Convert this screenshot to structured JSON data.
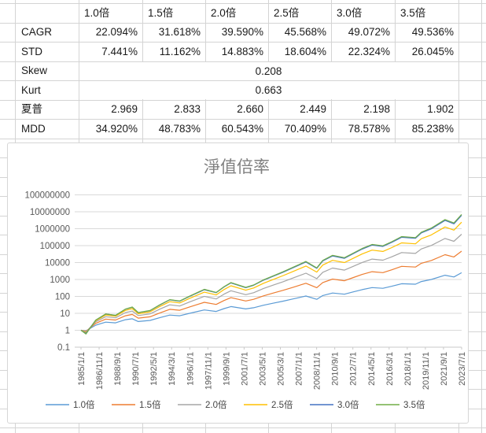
{
  "table": {
    "col_headers": [
      "1.0倍",
      "1.5倍",
      "2.0倍",
      "2.5倍",
      "3.0倍",
      "3.5倍"
    ],
    "rows": [
      {
        "label": "CAGR",
        "values": [
          "22.094%",
          "31.618%",
          "39.590%",
          "45.568%",
          "49.072%",
          "49.536%"
        ]
      },
      {
        "label": "STD",
        "values": [
          "7.441%",
          "11.162%",
          "14.883%",
          "18.604%",
          "22.324%",
          "26.045%"
        ]
      },
      {
        "label": "Skew",
        "merged": "0.208"
      },
      {
        "label": "Kurt",
        "merged": "0.663"
      },
      {
        "label": "夏普",
        "values": [
          "2.969",
          "2.833",
          "2.660",
          "2.449",
          "2.198",
          "1.902"
        ]
      },
      {
        "label": "MDD",
        "values": [
          "34.920%",
          "48.783%",
          "60.543%",
          "70.409%",
          "78.578%",
          "85.238%"
        ]
      }
    ]
  },
  "chart_data": {
    "type": "line",
    "title": "淨值倍率",
    "y_scale": "log",
    "ylim": [
      0.1,
      100000000
    ],
    "grid": true,
    "legend_position": "bottom",
    "y_ticks": [
      0.1,
      1,
      10,
      100,
      1000,
      10000,
      100000,
      1000000,
      10000000,
      100000000
    ],
    "x_tick_labels": [
      "1985/1/1",
      "1986/11/1",
      "1988/9/1",
      "1990/7/1",
      "1992/5/1",
      "1994/3/1",
      "1996/1/1",
      "1997/11/1",
      "1999/9/1",
      "2001/7/1",
      "2003/5/1",
      "2005/3/1",
      "2007/1/1",
      "2008/11/1",
      "2010/9/1",
      "2012/7/1",
      "2014/5/1",
      "2016/3/1",
      "2018/1/1",
      "2019/11/1",
      "2021/9/1",
      "2023/7/1"
    ],
    "x_range_years": [
      1985.0,
      2023.58
    ],
    "x": [
      1985.0,
      1985.5,
      1986.5,
      1987.5,
      1988.5,
      1989.5,
      1990.2,
      1990.8,
      1992.0,
      1993.0,
      1994.0,
      1995.0,
      1996.0,
      1997.5,
      1998.7,
      1999.5,
      2000.2,
      2001.7,
      2002.5,
      2003.5,
      2004.5,
      2005.5,
      2006.5,
      2007.8,
      2008.9,
      2009.5,
      2010.5,
      2011.7,
      2012.5,
      2013.5,
      2014.5,
      2015.6,
      2016.5,
      2017.5,
      2018.9,
      2019.5,
      2020.5,
      2021.9,
      2022.8,
      2023.58
    ],
    "series": [
      {
        "name": "1.0倍",
        "color": "#5B9BD5",
        "values": [
          1,
          0.93,
          2.0,
          3.0,
          2.75,
          4.2,
          4.8,
          3.3,
          3.8,
          5.6,
          7.9,
          7.2,
          10,
          15.8,
          12.9,
          19.1,
          25.1,
          18.2,
          21.4,
          30.2,
          39.8,
          52.5,
          70.8,
          105,
          67.6,
          112,
          158,
          135,
          178,
          251,
          331,
          302,
          398,
          562,
          525,
          759,
          1000,
          1780,
          1410,
          2510
        ]
      },
      {
        "name": "1.5倍",
        "color": "#ED7D31",
        "values": [
          1,
          0.88,
          2.58,
          4.57,
          4.03,
          7.2,
          8.6,
          5.2,
          6.26,
          10.7,
          17.3,
          15.2,
          23.7,
          44.6,
          33.5,
          57.4,
          83.9,
          53.8,
          67.1,
          108,
          158,
          231,
          348,
          597,
          327,
          656,
          1050,
          845,
          1240,
          1990,
          2900,
          2550,
          3730,
          6010,
          5460,
          9060,
          13200,
          29200,
          21300,
          47000
        ]
      },
      {
        "name": "2.0倍",
        "color": "#A5A5A5",
        "values": [
          1,
          0.8,
          3.17,
          6.33,
          5.42,
          11.0,
          13.7,
          7.4,
          9.29,
          17.9,
          31.8,
          27.2,
          46.7,
          101,
          71.3,
          137,
          217,
          127,
          166,
          295,
          468,
          743,
          1220,
          2350,
          1130,
          2640,
          4700,
          3590,
          5690,
          10100,
          16100,
          13800,
          21800,
          38900,
          34700,
          64100,
          102000,
          266000,
          181000,
          473000
        ]
      },
      {
        "name": "2.5倍",
        "color": "#FFC000",
        "values": [
          1,
          0.72,
          3.66,
          7.97,
          6.7,
          14.8,
          19.0,
          9.4,
          12.3,
          25.6,
          49.0,
          41.2,
          75.5,
          179,
          122,
          254,
          426,
          232,
          315,
          601,
          1010,
          1700,
          2980,
          6220,
          2730,
          7080,
          13500,
          10000,
          16800,
          32100,
          54100,
          45400,
          76400,
          146000,
          128000,
          256000,
          431000,
          1270000,
          824000,
          2430000
        ]
      },
      {
        "name": "3.0倍",
        "color": "#4472C4",
        "values": [
          1,
          0.65,
          3.97,
          9.1,
          7.57,
          17.5,
          22.9,
          10.9,
          14.4,
          31.5,
          62.7,
          52.1,
          99.3,
          249,
          165,
          360,
          625,
          328,
          453,
          904,
          1570,
          2720,
          4940,
          10800,
          4520,
          12400,
          24700,
          17900,
          31100,
          62100,
          108000,
          89700,
          156000,
          310000,
          270000,
          564000,
          980000,
          3090000,
          1950000,
          6170000
        ]
      },
      {
        "name": "3.5倍",
        "color": "#70AD47",
        "values": [
          1,
          0.6,
          4.02,
          9.25,
          7.69,
          17.9,
          23.5,
          11.1,
          14.7,
          32.4,
          64.8,
          53.8,
          103,
          261,
          171,
          378,
          658,
          344,
          475,
          953,
          1660,
          2900,
          5300,
          11600,
          4830,
          13400,
          26800,
          19400,
          33800,
          67800,
          118000,
          98200,
          171000,
          344000,
          299000,
          627000,
          1090000,
          3480000,
          2190000,
          6980000
        ]
      }
    ],
    "colors": {
      "title": "#808080",
      "axis_text": "#595959",
      "gridline": "#d9d9d9",
      "legend_text": "#444444"
    }
  }
}
